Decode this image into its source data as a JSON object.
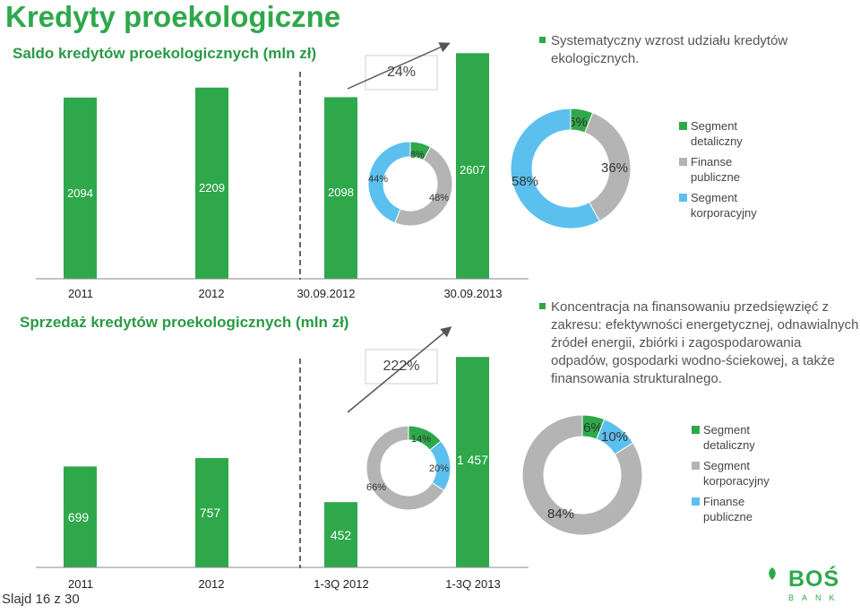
{
  "slide": {
    "title": "Kredyty proekologiczne",
    "footer": "Slajd 16 z 30"
  },
  "logo": {
    "name": "BOŚ",
    "sub": "BANK"
  },
  "top": {
    "growth_label": "24%",
    "bullet": [
      "Systematyczny wzrost udziału kredytów",
      "ekologicznych."
    ],
    "legend": [
      {
        "label": [
          "Segment",
          "detaliczny"
        ],
        "color": "#2ea84a"
      },
      {
        "label": [
          "Finanse",
          "publiczne"
        ],
        "color": "#b4b4b4"
      },
      {
        "label": [
          "Segment",
          "korporacyjny"
        ],
        "color": "#5bc0ee"
      }
    ]
  },
  "bottom": {
    "growth_label": "222%",
    "bullet": [
      "Koncentracja na finansowaniu przedsięwzięć z",
      "zakresu: efektywności energetycznej, odnawialnych",
      "źródeł energii, zbiórki i zagospodarowania",
      "odpadów, gospodarki wodno-ściekowej, a także",
      "finansowania strukturalnego."
    ],
    "legend": [
      {
        "label": [
          "Segment",
          "detaliczny"
        ],
        "color": "#2ea84a"
      },
      {
        "label": [
          "Segment",
          "korporacyjny"
        ],
        "color": "#b4b4b4"
      },
      {
        "label": [
          "Finanse",
          "publiczne"
        ],
        "color": "#5bc0ee"
      }
    ]
  },
  "colors": {
    "green": "#2ea84a",
    "grey": "#b4b4b4",
    "blue": "#5bc0ee",
    "divider": "#666666"
  },
  "chart_data": [
    {
      "type": "bar",
      "title": "Saldo kredytów proekologicznych (mln zł)",
      "categories": [
        "2011",
        "2012",
        "30.09.2012",
        "30.09.2013"
      ],
      "values": [
        2094,
        2209,
        2098,
        2607
      ],
      "value_labels": [
        "2094",
        "2209",
        "2098",
        "2607"
      ],
      "ylim": [
        0,
        2900
      ],
      "growth": "24%"
    },
    {
      "type": "pie",
      "variant": "donut",
      "for": "30.09.2012 saldo",
      "slices": [
        {
          "name": "Segment detaliczny",
          "value": 8,
          "label": "8%"
        },
        {
          "name": "Finanse publiczne",
          "value": 48,
          "label": "48%"
        },
        {
          "name": "Segment korporacyjny",
          "value": 44,
          "label": "44%"
        }
      ]
    },
    {
      "type": "pie",
      "variant": "donut",
      "for": "30.09.2013 saldo",
      "slices": [
        {
          "name": "Segment detaliczny",
          "value": 6,
          "label": "6%"
        },
        {
          "name": "Finanse publiczne",
          "value": 36,
          "label": "36%"
        },
        {
          "name": "Segment korporacyjny",
          "value": 58,
          "label": "58%"
        }
      ]
    },
    {
      "type": "bar",
      "title": "Sprzedaż kredytów proekologicznych (mln zł)",
      "categories": [
        "2011",
        "2012",
        "1-3Q 2012",
        "1-3Q 2013"
      ],
      "values": [
        699,
        757,
        452,
        1457
      ],
      "value_labels": [
        "699",
        "757",
        "452",
        "1 457"
      ],
      "ylim": [
        0,
        1800
      ],
      "growth": "222%"
    },
    {
      "type": "pie",
      "variant": "donut",
      "for": "1-3Q 2012 sprzedaż",
      "slices": [
        {
          "name": "Segment detaliczny",
          "value": 14,
          "label": "14%"
        },
        {
          "name": "Segment korporacyjny",
          "value": 20,
          "label": "20%"
        },
        {
          "name": "Finanse publiczne",
          "value": 66,
          "label": "66%"
        }
      ]
    },
    {
      "type": "pie",
      "variant": "donut",
      "for": "1-3Q 2013 sprzedaż",
      "slices": [
        {
          "name": "Segment detaliczny",
          "value": 6,
          "label": "6%"
        },
        {
          "name": "Segment korporacyjny",
          "value": 10,
          "label": "10%"
        },
        {
          "name": "Finanse publiczne",
          "value": 84,
          "label": "84%"
        }
      ]
    }
  ]
}
